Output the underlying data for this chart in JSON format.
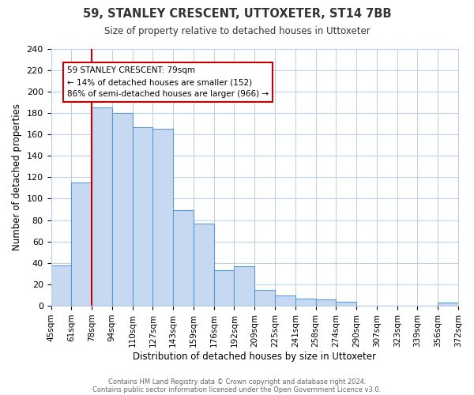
{
  "title": "59, STANLEY CRESCENT, UTTOXETER, ST14 7BB",
  "subtitle": "Size of property relative to detached houses in Uttoxeter",
  "xlabel": "Distribution of detached houses by size in Uttoxeter",
  "ylabel": "Number of detached properties",
  "bin_labels": [
    "45sqm",
    "61sqm",
    "78sqm",
    "94sqm",
    "110sqm",
    "127sqm",
    "143sqm",
    "159sqm",
    "176sqm",
    "192sqm",
    "209sqm",
    "225sqm",
    "241sqm",
    "258sqm",
    "274sqm",
    "290sqm",
    "307sqm",
    "323sqm",
    "339sqm",
    "356sqm",
    "372sqm"
  ],
  "bar_heights": [
    38,
    115,
    185,
    180,
    167,
    165,
    89,
    77,
    33,
    37,
    15,
    10,
    7,
    6,
    4,
    0,
    0,
    0,
    0,
    3
  ],
  "bar_color": "#c6d9f0",
  "bar_edge_color": "#5b9bd5",
  "marker_bin_index": 2,
  "marker_label": "59 STANLEY CRESCENT: 79sqm",
  "marker_line_color": "#cc0000",
  "annotation_line1": "← 14% of detached houses are smaller (152)",
  "annotation_line2": "86% of semi-detached houses are larger (966) →",
  "annotation_box_edge": "#cc0000",
  "ylim": [
    0,
    240
  ],
  "yticks": [
    0,
    20,
    40,
    60,
    80,
    100,
    120,
    140,
    160,
    180,
    200,
    220,
    240
  ],
  "footer1": "Contains HM Land Registry data © Crown copyright and database right 2024.",
  "footer2": "Contains public sector information licensed under the Open Government Licence v3.0.",
  "background_color": "#ffffff",
  "grid_color": "#c0d0e8"
}
